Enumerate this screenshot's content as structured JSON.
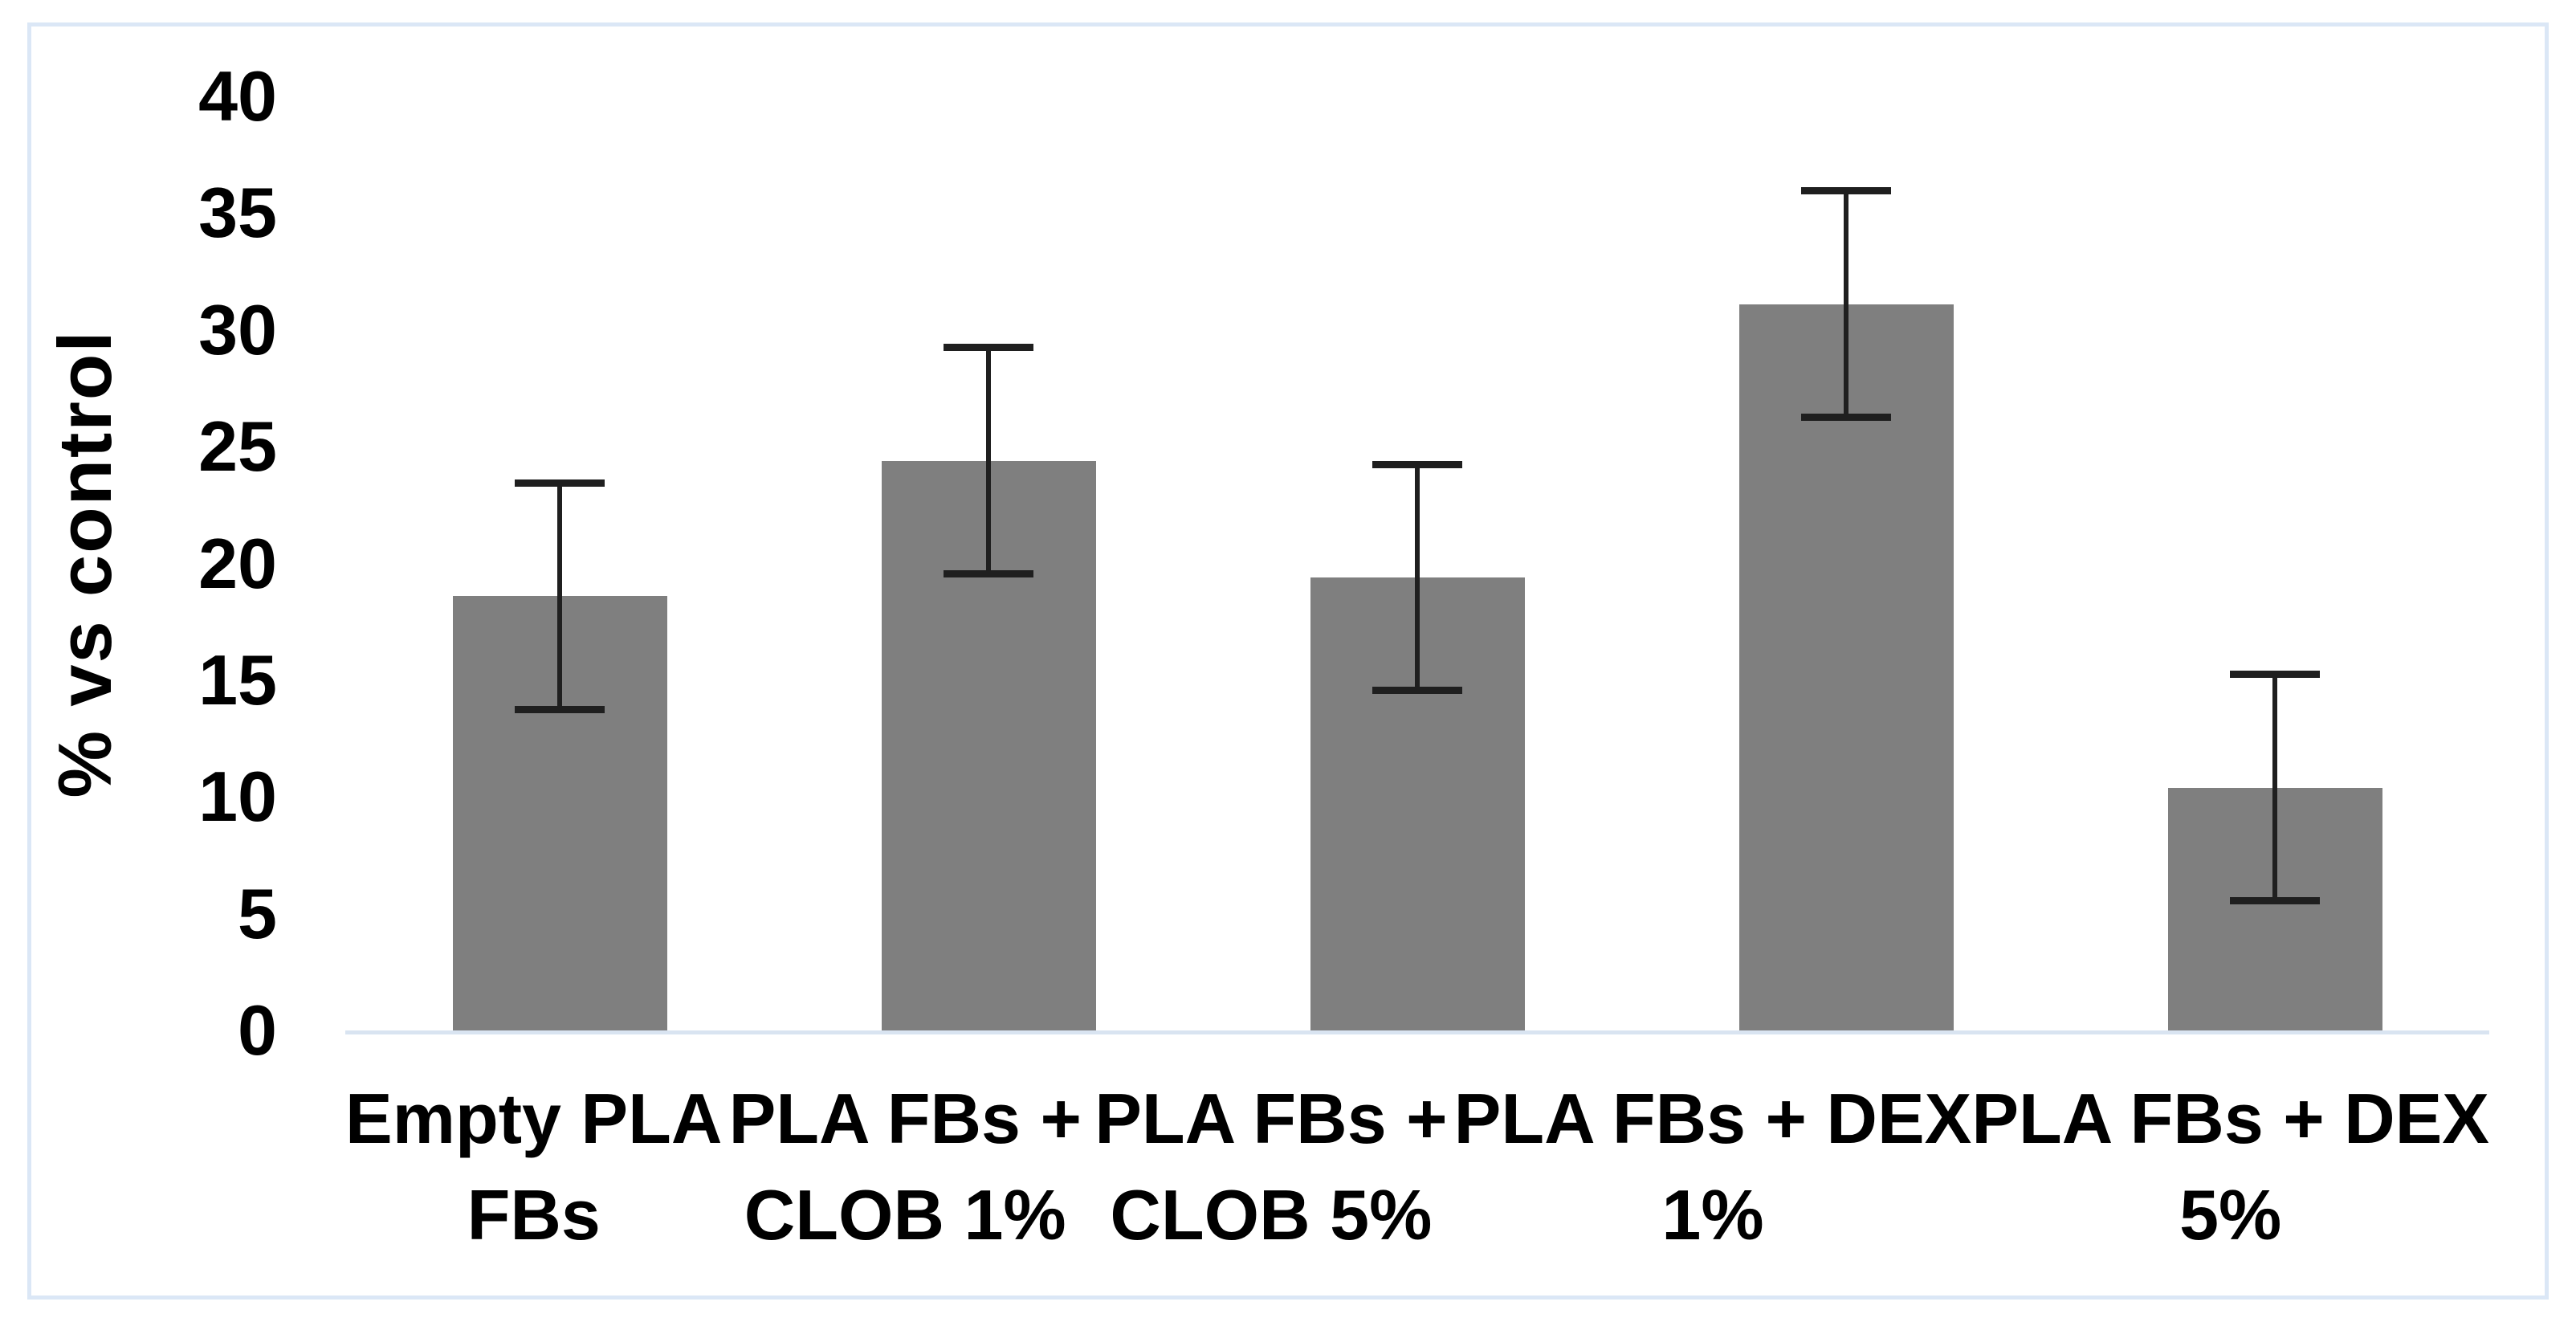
{
  "figure": {
    "background": "#ffffff",
    "border_color": "#dbe7f6"
  },
  "chart_data": {
    "type": "bar",
    "title": "",
    "xlabel": "",
    "ylabel": "% vs control",
    "ylim": [
      0,
      40
    ],
    "yticks": [
      0,
      5,
      10,
      15,
      20,
      25,
      30,
      35,
      40
    ],
    "grid": false,
    "legend": false,
    "categories": [
      "Empty PLA FBs",
      "PLA FBs + CLOB 1%",
      "PLA FBs + CLOB 5%",
      "PLA FBs + DEX 1%",
      "PLA FBs + DEX 5%"
    ],
    "category_label_lines": [
      [
        "Empty PLA",
        "FBs"
      ],
      [
        "PLA FBs +",
        "CLOB 1%"
      ],
      [
        "PLA FBs +",
        "CLOB 5%"
      ],
      [
        "PLA FBs + DEX",
        "1%"
      ],
      [
        "PLA FBs + DEX",
        "5%"
      ]
    ],
    "series": [
      {
        "name": "% vs control",
        "values": [
          18.6,
          24.4,
          19.4,
          31.1,
          10.4
        ],
        "error_bars": [
          5,
          5,
          5,
          5,
          5
        ]
      }
    ],
    "bar_color": "#7f7f7f",
    "error_bar_color": "#1f1f1f",
    "axis_line_color": "#d9e4f1"
  }
}
